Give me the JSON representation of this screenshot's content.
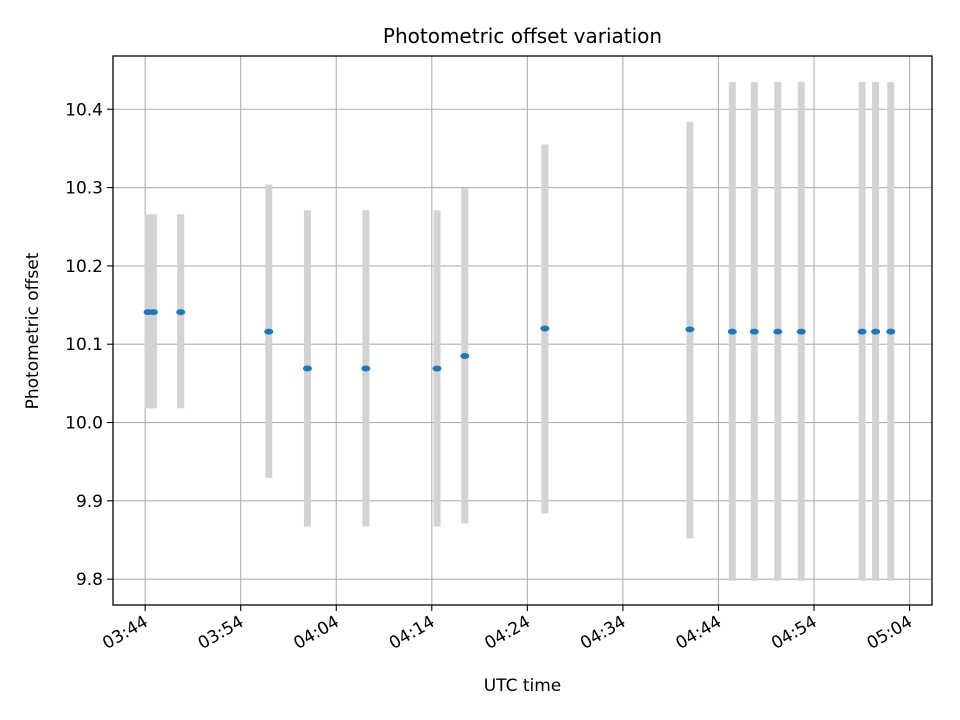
{
  "chart_data": {
    "type": "scatter",
    "title": "Photometric offset variation",
    "xlabel": "UTC time",
    "ylabel": "Photometric offset",
    "xlim": [
      "03:40:38",
      "05:06:21"
    ],
    "ylim": [
      9.767,
      10.468
    ],
    "grid": true,
    "x_ticks": [
      "03:44",
      "03:54",
      "04:04",
      "04:14",
      "04:24",
      "04:34",
      "04:44",
      "04:54",
      "05:04"
    ],
    "y_ticks": [
      "9.8",
      "9.9",
      "10.0",
      "10.1",
      "10.2",
      "10.3",
      "10.4"
    ],
    "colors": {
      "marker": "#1f77b4",
      "errorbar": "#d3d3d3",
      "grid": "#b0b0b0"
    },
    "points": [
      {
        "x": "03:44:18",
        "y": 10.141,
        "low": 10.018,
        "high": 10.266
      },
      {
        "x": "03:44:52",
        "y": 10.141,
        "low": 10.018,
        "high": 10.266
      },
      {
        "x": "03:47:43",
        "y": 10.141,
        "low": 10.018,
        "high": 10.266
      },
      {
        "x": "03:56:56",
        "y": 10.116,
        "low": 9.929,
        "high": 10.304
      },
      {
        "x": "04:00:59",
        "y": 10.069,
        "low": 9.867,
        "high": 10.271
      },
      {
        "x": "04:07:06",
        "y": 10.069,
        "low": 9.867,
        "high": 10.271
      },
      {
        "x": "04:14:33",
        "y": 10.069,
        "low": 9.867,
        "high": 10.271
      },
      {
        "x": "04:17:27",
        "y": 10.085,
        "low": 9.871,
        "high": 10.299
      },
      {
        "x": "04:25:50",
        "y": 10.12,
        "low": 9.884,
        "high": 10.355
      },
      {
        "x": "04:41:01",
        "y": 10.119,
        "low": 9.852,
        "high": 10.384
      },
      {
        "x": "04:45:27",
        "y": 10.116,
        "low": 9.798,
        "high": 10.435
      },
      {
        "x": "04:47:45",
        "y": 10.116,
        "low": 9.798,
        "high": 10.435
      },
      {
        "x": "04:50:13",
        "y": 10.116,
        "low": 9.798,
        "high": 10.435
      },
      {
        "x": "04:52:40",
        "y": 10.116,
        "low": 9.798,
        "high": 10.435
      },
      {
        "x": "04:59:02",
        "y": 10.116,
        "low": 9.798,
        "high": 10.435
      },
      {
        "x": "05:00:27",
        "y": 10.116,
        "low": 9.798,
        "high": 10.435
      },
      {
        "x": "05:02:02",
        "y": 10.116,
        "low": 9.798,
        "high": 10.435
      }
    ]
  }
}
